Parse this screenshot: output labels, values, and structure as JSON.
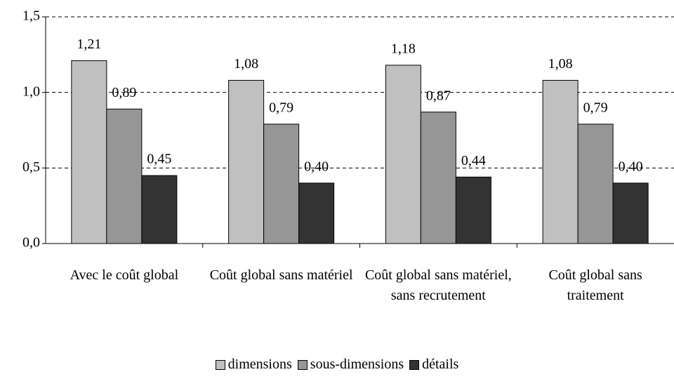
{
  "chart_data": {
    "type": "bar",
    "categories": [
      "Avec le coût global",
      "Coût global sans matériel",
      "Coût global sans matériel, sans recrutement",
      "Coût global sans traitement"
    ],
    "series": [
      {
        "name": "dimensions",
        "color": "#c0c0c0",
        "values": [
          1.21,
          1.08,
          1.18,
          1.08
        ],
        "value_labels": [
          "1,21",
          "1,08",
          "1,18",
          "1,08"
        ]
      },
      {
        "name": "sous-dimensions",
        "color": "#969696",
        "values": [
          0.89,
          0.79,
          0.87,
          0.79
        ],
        "value_labels": [
          "0,89",
          "0,79",
          "0,87",
          "0,79"
        ]
      },
      {
        "name": "détails",
        "color": "#333333",
        "values": [
          0.45,
          0.4,
          0.44,
          0.4
        ],
        "value_labels": [
          "0,45",
          "0,40",
          "0,44",
          "0,40"
        ]
      }
    ],
    "ylim": [
      0,
      1.5
    ],
    "yticks": [
      {
        "value": 0,
        "label": "0,0"
      },
      {
        "value": 0.5,
        "label": "0,5"
      },
      {
        "value": 1.0,
        "label": "1,0"
      },
      {
        "value": 1.5,
        "label": "1,5"
      }
    ],
    "grid": true,
    "legend": "bottom"
  }
}
